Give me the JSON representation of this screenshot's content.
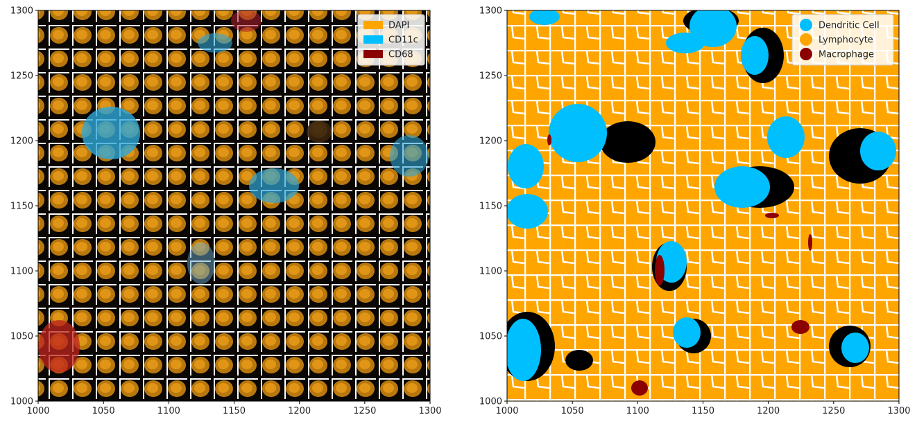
{
  "panels": [
    {
      "id": "channel-image",
      "xlim": [
        1000,
        1300
      ],
      "ylim": [
        1000,
        1300
      ],
      "xticks": [
        "1000",
        "1050",
        "1100",
        "1150",
        "1200",
        "1250",
        "1300"
      ],
      "yticks": [
        "1000",
        "1050",
        "1100",
        "1150",
        "1200",
        "1250",
        "1300"
      ],
      "legend": {
        "placement": "top-right",
        "marker": "patch",
        "entries": [
          {
            "label": "DAPI",
            "color": "#FFA500"
          },
          {
            "label": "CD11c",
            "color": "#00BFFF"
          },
          {
            "label": "CD68",
            "color": "#8B0000"
          }
        ]
      }
    },
    {
      "id": "cell-type-map",
      "xlim": [
        1000,
        1300
      ],
      "ylim": [
        1000,
        1300
      ],
      "xticks": [
        "1000",
        "1050",
        "1100",
        "1150",
        "1200",
        "1250",
        "1300"
      ],
      "yticks": [
        "1000",
        "1050",
        "1100",
        "1150",
        "1200",
        "1250",
        "1300"
      ],
      "legend": {
        "placement": "top-right",
        "marker": "circle",
        "entries": [
          {
            "label": "Dendritic Cell",
            "color": "#00BFFF"
          },
          {
            "label": "Lymphocyte",
            "color": "#FFA500"
          },
          {
            "label": "Macrophage",
            "color": "#8B0000"
          }
        ]
      }
    }
  ]
}
